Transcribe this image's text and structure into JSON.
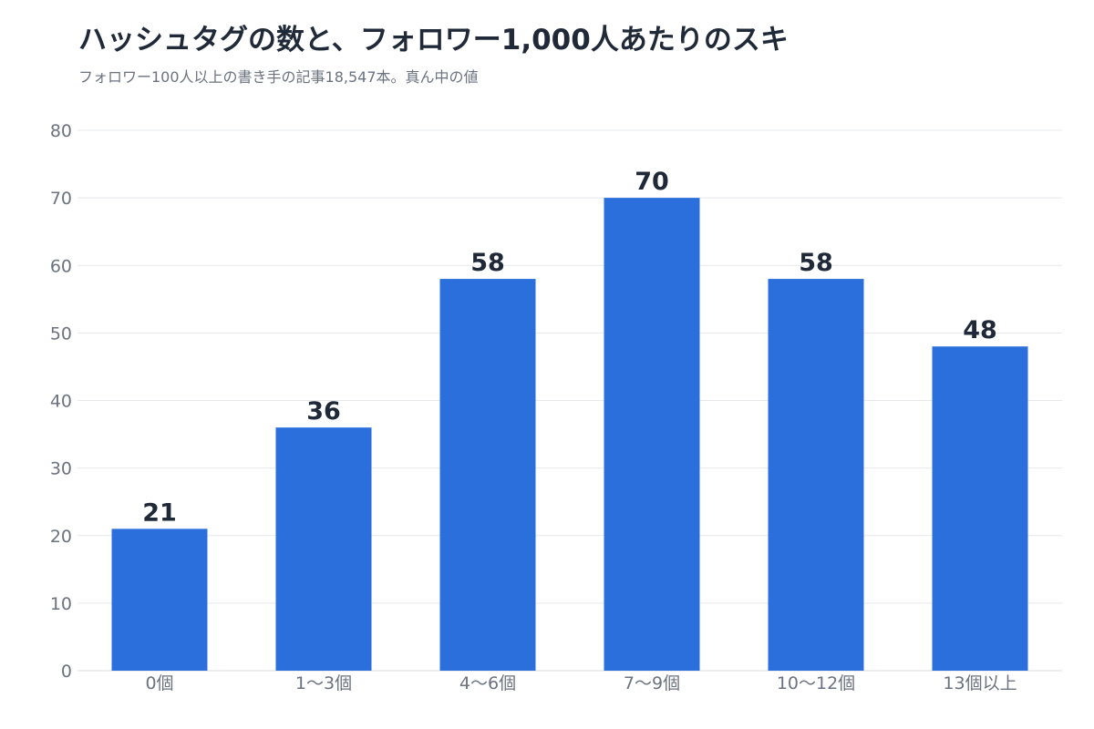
{
  "chart_data": {
    "type": "bar",
    "title": "ハッシュタグの数と、フォロワー1,000人あたりのスキ",
    "subtitle": "フォロワー100人以上の書き手の記事18,547本。真ん中の値",
    "categories": [
      "0個",
      "1〜3個",
      "4〜6個",
      "7〜9個",
      "10〜12個",
      "13個以上"
    ],
    "values": [
      21,
      36,
      58,
      70,
      58,
      48
    ],
    "data_labels": [
      "21",
      "36",
      "58",
      "70",
      "58",
      "48"
    ],
    "ylim": [
      0,
      80
    ],
    "yticks": [
      0,
      10,
      20,
      30,
      40,
      50,
      60,
      70,
      80
    ],
    "grid": true,
    "colors": {
      "bar": "#2b6fdc",
      "label": "#1f2937",
      "axis_text": "#6b7280",
      "grid": "#e6e8eb"
    }
  }
}
